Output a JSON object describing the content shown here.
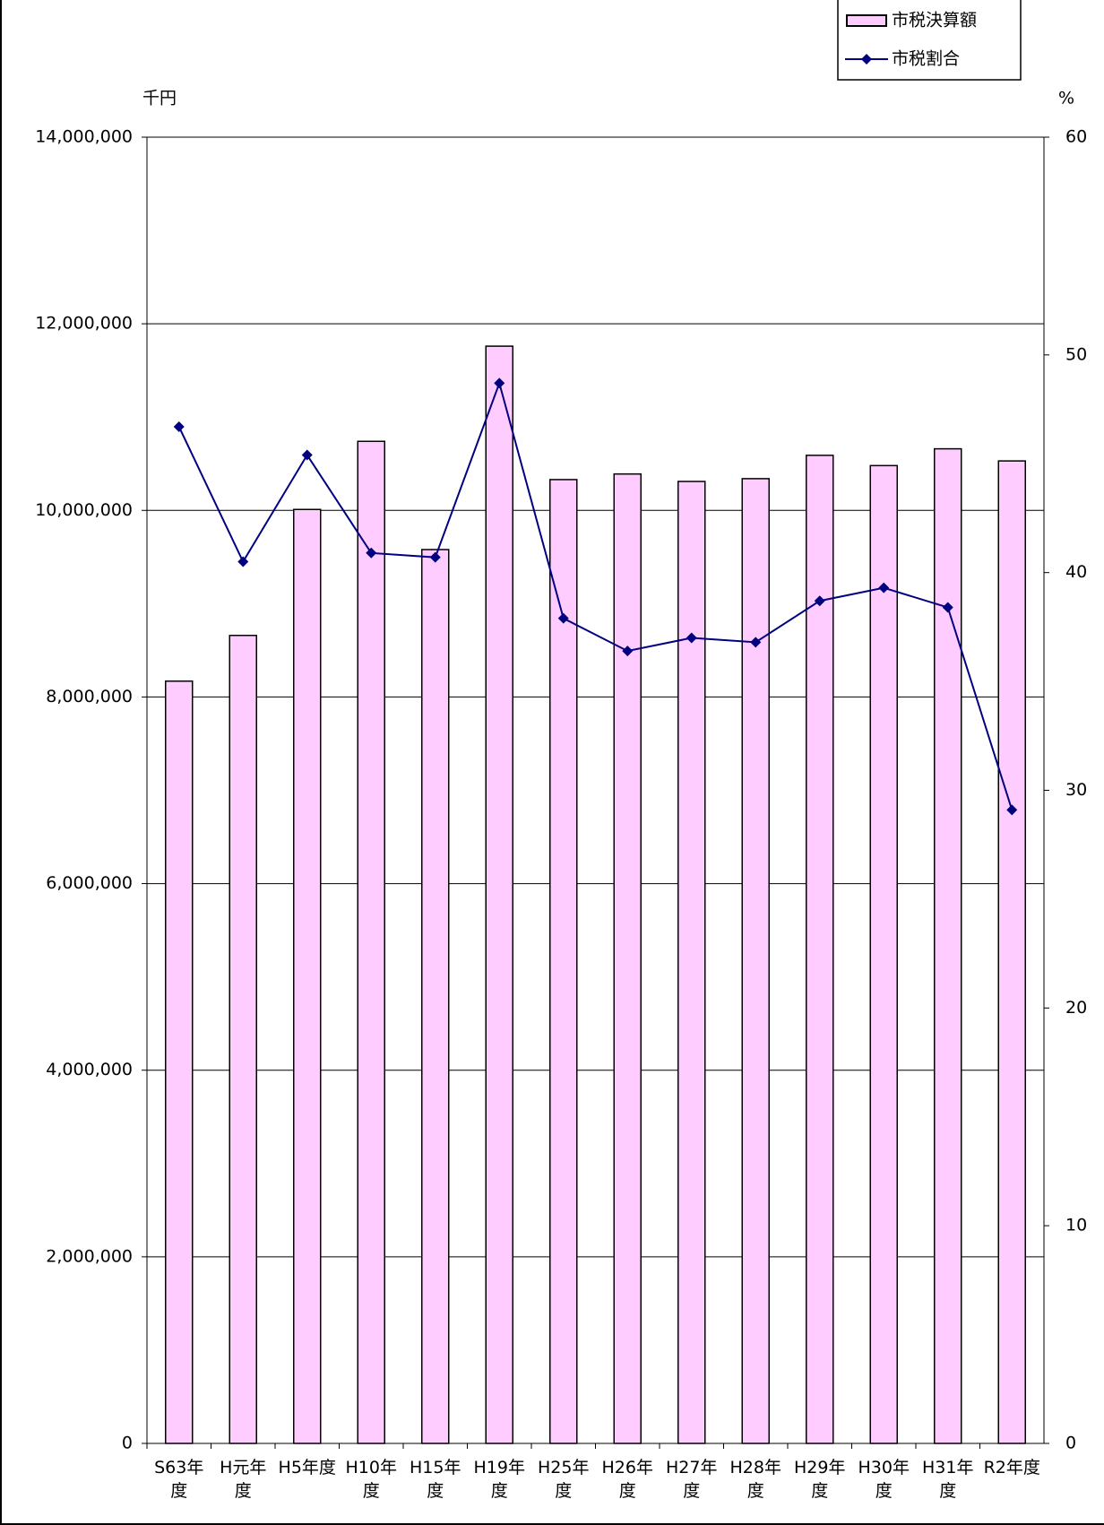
{
  "chart_data": {
    "type": "bar-line",
    "y_unit": "千円",
    "y2_unit": "%",
    "categories": [
      "S63年\n度",
      "H元年\n度",
      "H5年度",
      "H10年\n度",
      "H15年\n度",
      "H19年\n度",
      "H25年\n度",
      "H26年\n度",
      "H27年\n度",
      "H28年\n度",
      "H29年\n度",
      "H30年\n度",
      "H31年\n度",
      "R2年度"
    ],
    "series": [
      {
        "name": "市税決算額",
        "type": "bar",
        "color": "#ffccff",
        "values": [
          8170000,
          8660000,
          10010000,
          10740000,
          9580000,
          11760000,
          10330000,
          10390000,
          10310000,
          10340000,
          10590000,
          10480000,
          10660000,
          10530000
        ]
      },
      {
        "name": "市税割合",
        "type": "line",
        "axis": "y2",
        "color": "#000080",
        "values": [
          46.7,
          40.5,
          45.4,
          40.9,
          40.7,
          48.7,
          37.9,
          36.4,
          37.0,
          36.8,
          38.7,
          39.3,
          38.4,
          29.1
        ]
      }
    ],
    "ylim": [
      0,
      14000000
    ],
    "yticks": [
      0,
      {
        "value": 2000000,
        "label": "2,000,000"
      },
      {
        "value": 4000000,
        "label": "4,000,000"
      },
      {
        "value": 6000000,
        "label": "6,000,000"
      },
      {
        "value": 8000000,
        "label": "8,000,000"
      },
      {
        "value": 10000000,
        "label": "10,000,000"
      },
      {
        "value": 12000000,
        "label": "12,000,000"
      },
      {
        "value": 14000000,
        "label": "14,000,000"
      }
    ],
    "y2lim": [
      0,
      60
    ],
    "y2ticks": [
      0,
      10,
      20,
      30,
      40,
      50,
      60
    ],
    "grid": true,
    "legend": "top-right"
  }
}
